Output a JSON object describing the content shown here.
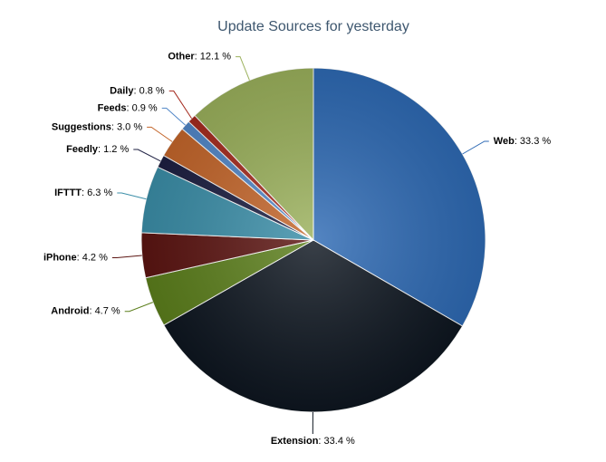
{
  "chart_data": {
    "type": "pie",
    "title": "Update Sources for yesterday",
    "categories": [
      "Web",
      "Extension",
      "Android",
      "iPhone",
      "IFTTT",
      "Feedly",
      "Suggestions",
      "Feeds",
      "Daily",
      "Other"
    ],
    "values": [
      33.3,
      33.4,
      4.7,
      4.2,
      6.3,
      1.2,
      3.0,
      0.9,
      0.8,
      12.1
    ],
    "value_labels": [
      ": 33.3 %",
      ": 33.4 %",
      ": 4.7 %",
      ": 4.2 %",
      ": 6.3 %",
      ": 1.2 %",
      ": 3.0 %",
      ": 0.9 %",
      ": 0.8 %",
      ": 12.1 %"
    ],
    "colors": [
      "#2e6ab4",
      "#0e1620",
      "#5c7f1c",
      "#5c1512",
      "#3b8ea8",
      "#1d1f42",
      "#c4662b",
      "#5287c8",
      "#a52b1f",
      "#9bb15c"
    ]
  }
}
